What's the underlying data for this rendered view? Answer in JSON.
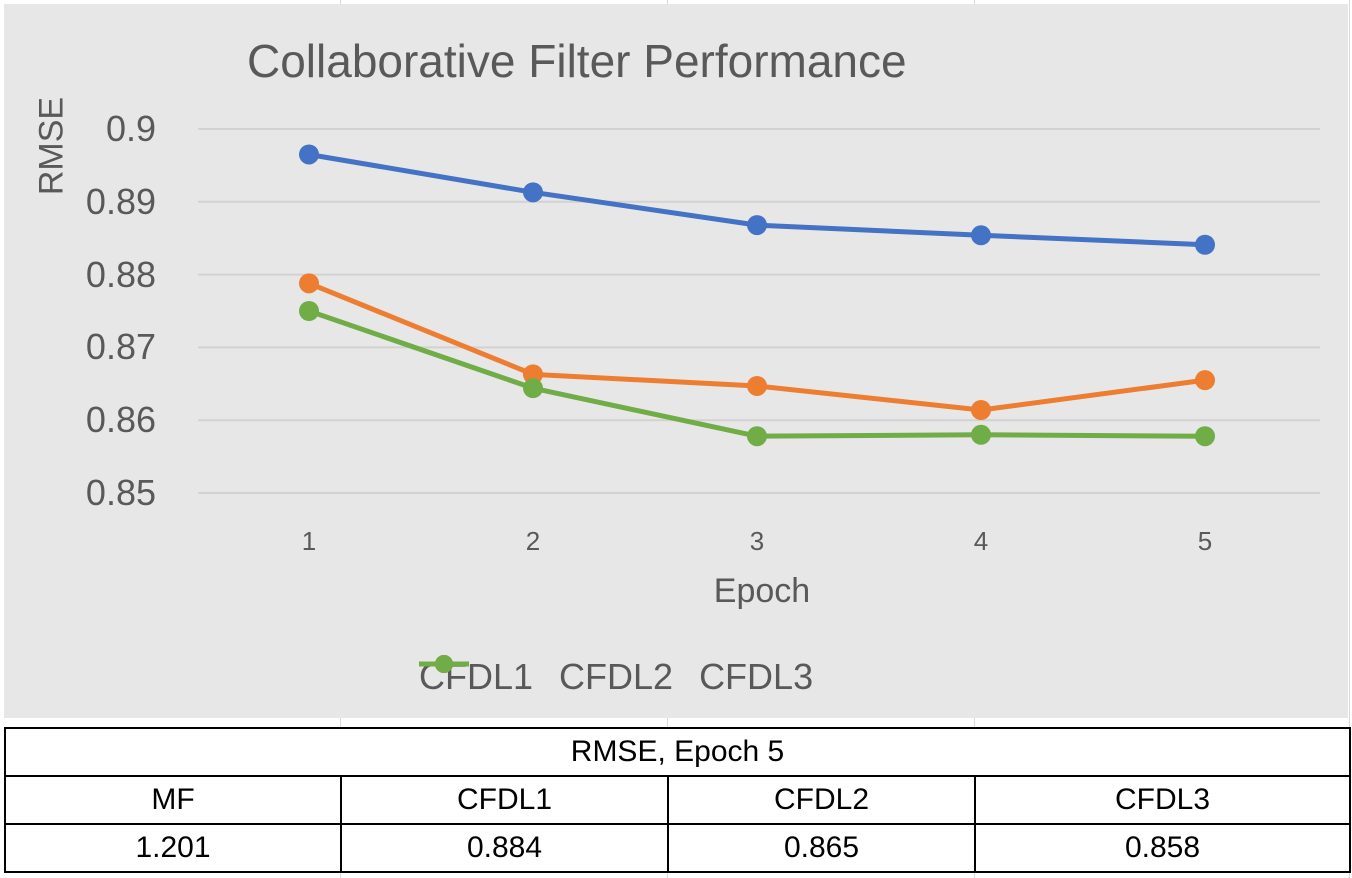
{
  "chart_data": {
    "type": "line",
    "title": "Collaborative Filter Performance",
    "xlabel": "Epoch",
    "ylabel": "RMSE",
    "categories": [
      "1",
      "2",
      "3",
      "4",
      "5"
    ],
    "yticks": [
      "0.9",
      "0.89",
      "0.88",
      "0.87",
      "0.86",
      "0.85"
    ],
    "ylim": [
      0.85,
      0.9
    ],
    "grid": true,
    "legend_position": "bottom",
    "series": [
      {
        "name": "CFDL1",
        "color": "#4472C4",
        "values": [
          0.8965,
          0.8913,
          0.8868,
          0.8854,
          0.8841
        ]
      },
      {
        "name": "CFDL2",
        "color": "#ED7D31",
        "values": [
          0.8788,
          0.8663,
          0.8647,
          0.8614,
          0.8655
        ]
      },
      {
        "name": "CFDL3",
        "color": "#70AD47",
        "values": [
          0.875,
          0.8644,
          0.8578,
          0.858,
          0.8578
        ]
      }
    ]
  },
  "table": {
    "title": "RMSE, Epoch 5",
    "headers": [
      "MF",
      "CFDL1",
      "CFDL2",
      "CFDL3"
    ],
    "values": [
      "1.201",
      "0.884",
      "0.865",
      "0.858"
    ]
  }
}
